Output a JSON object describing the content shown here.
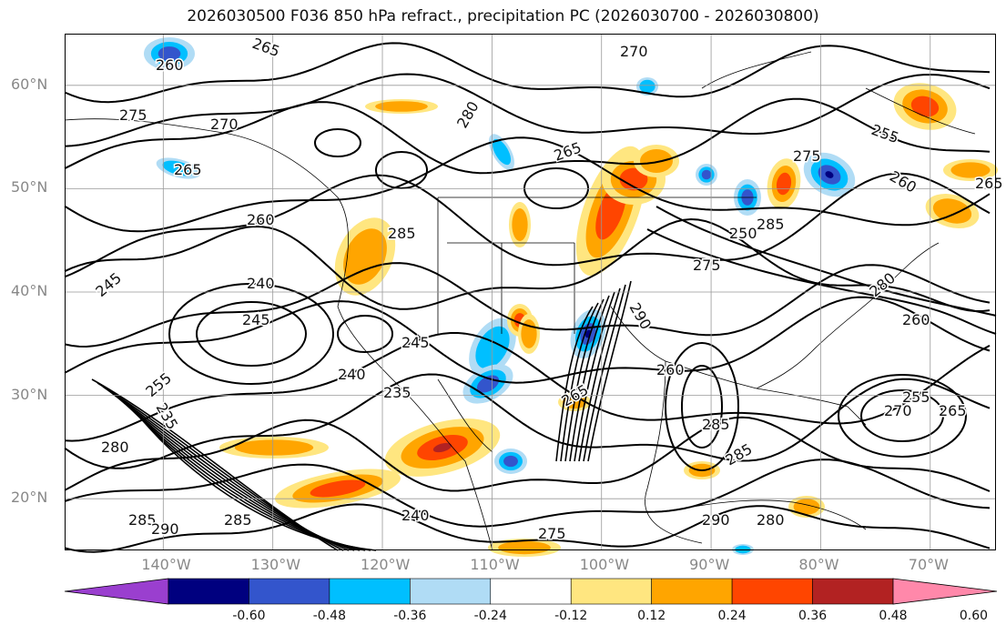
{
  "title": "2026030500 F036 850 hPa refract., precipitation PC (2026030700 - 2026030800)",
  "map": {
    "projection": "lat-lon",
    "lon_range": [
      -149,
      -64
    ],
    "lat_range": [
      15,
      65
    ],
    "grid": true,
    "lat_ticks": [
      "20°N",
      "30°N",
      "40°N",
      "50°N",
      "60°N"
    ],
    "lon_ticks": [
      "140°W",
      "130°W",
      "120°W",
      "110°W",
      "100°W",
      "90°W",
      "80°W",
      "70°W"
    ],
    "contour_interval": 5,
    "contour_labels": [
      "265",
      "260",
      "270",
      "275",
      "270",
      "280",
      "265",
      "265",
      "260",
      "285",
      "255",
      "260",
      "265",
      "245",
      "240",
      "245",
      "245",
      "240",
      "235",
      "255",
      "235",
      "280",
      "285",
      "290",
      "285",
      "240",
      "275",
      "290",
      "290",
      "280",
      "255",
      "265",
      "270",
      "285",
      "285",
      "260",
      "275",
      "260",
      "265",
      "250",
      "280",
      "275",
      "285"
    ]
  },
  "colorbar": {
    "extend": "both",
    "bins": [
      {
        "color": "#9a3fcf"
      },
      {
        "color": "#00007f"
      },
      {
        "color": "#3355cc"
      },
      {
        "color": "#00bfff"
      },
      {
        "color": "#b0dcf5"
      },
      {
        "color": "#ffffff"
      },
      {
        "color": "#ffe680"
      },
      {
        "color": "#ffa500"
      },
      {
        "color": "#ff4500"
      },
      {
        "color": "#b22222"
      },
      {
        "color": "#ff88aa"
      }
    ],
    "tick_labels": [
      "-0.60",
      "-0.48",
      "-0.36",
      "-0.24",
      "-0.12",
      "0.12",
      "0.24",
      "0.36",
      "0.48",
      "0.60"
    ]
  }
}
